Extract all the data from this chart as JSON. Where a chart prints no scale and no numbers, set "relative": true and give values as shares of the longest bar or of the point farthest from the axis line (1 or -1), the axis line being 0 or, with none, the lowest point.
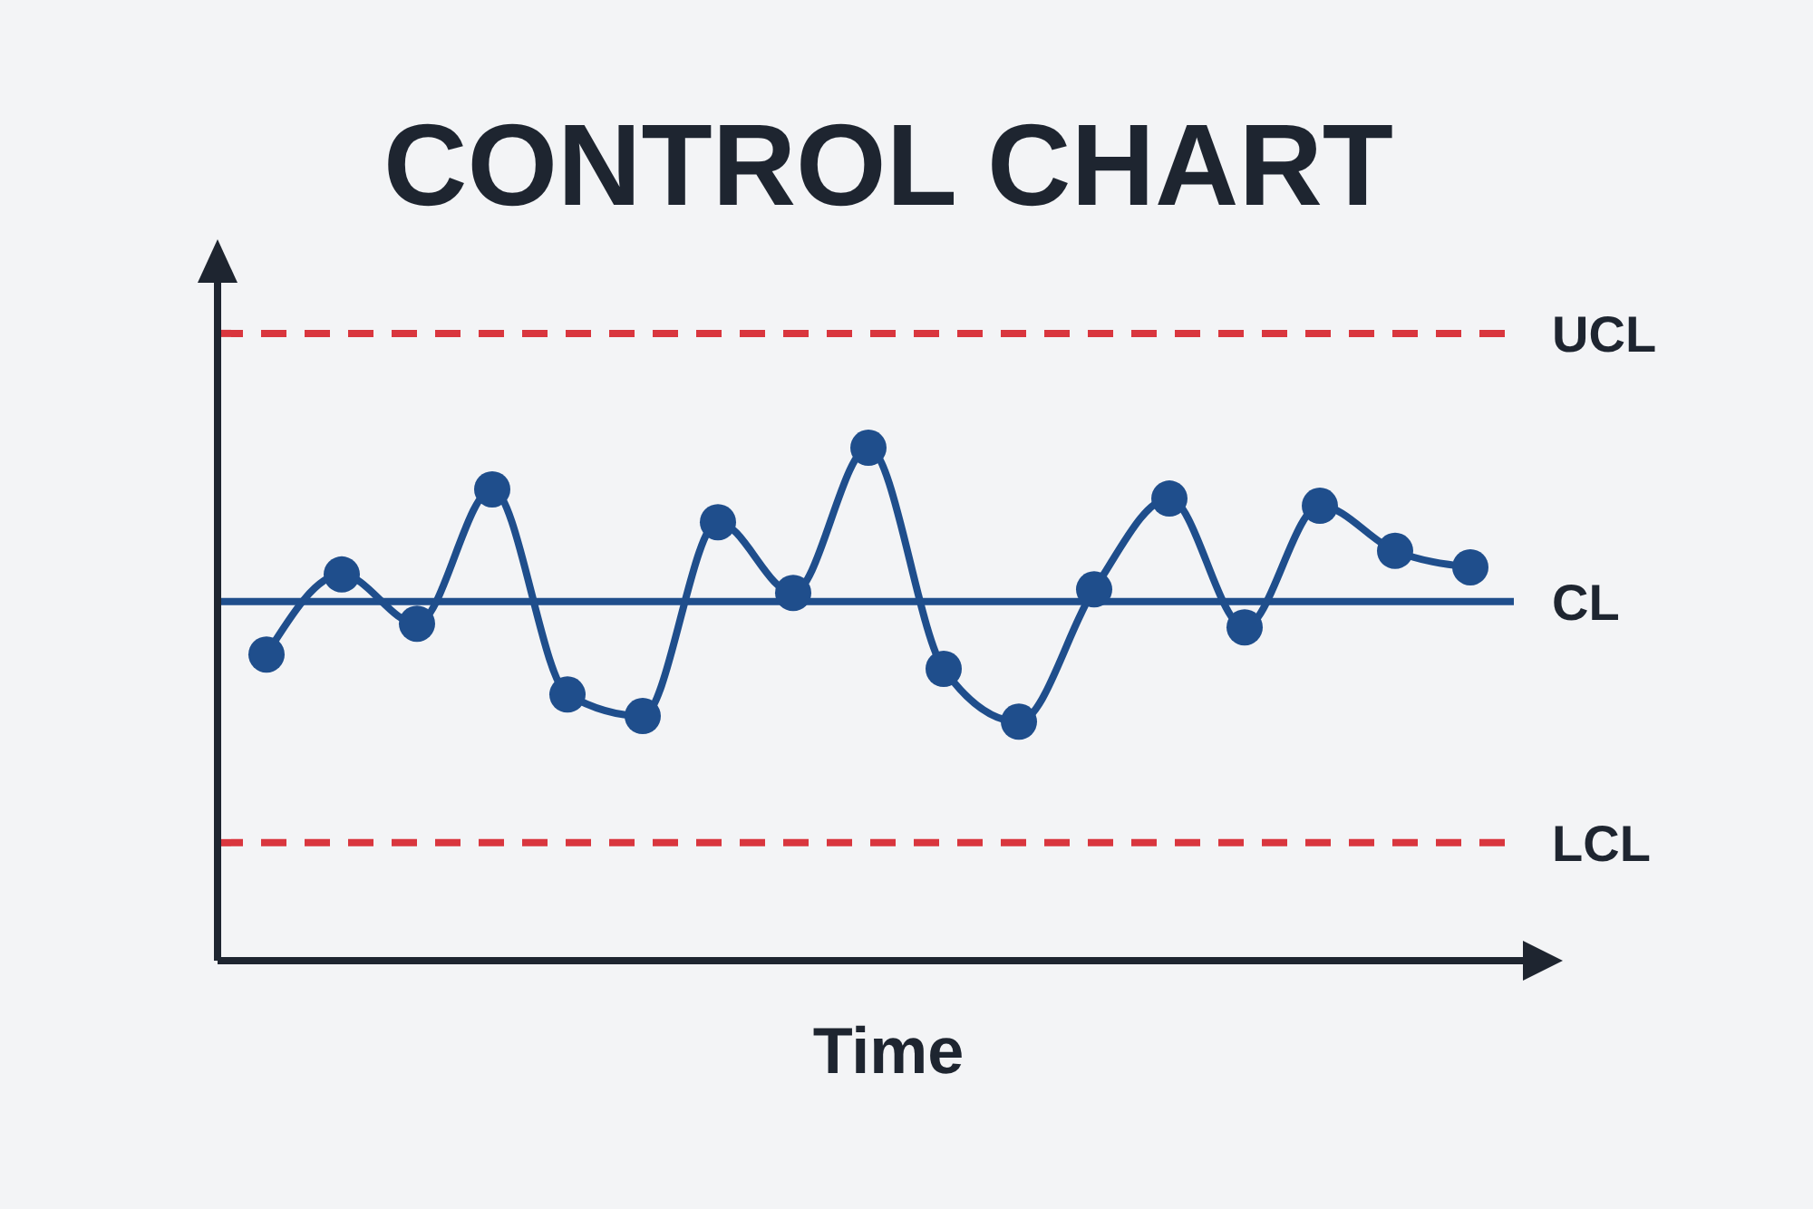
{
  "chart_data": {
    "type": "line",
    "title": "CONTROL CHART",
    "xlabel": "Time",
    "relative": true,
    "marker": "circle",
    "grid": false,
    "categories": [
      null,
      null,
      null,
      null,
      null,
      null,
      null,
      null,
      null,
      null,
      null,
      null,
      null,
      null,
      null,
      null,
      null
    ],
    "series": [
      {
        "color": "#1f4e8c",
        "values": [
          0.597,
          0.753,
          0.657,
          0.919,
          0.519,
          0.477,
          0.855,
          0.717,
          1,
          0.569,
          0.466,
          0.724,
          0.901,
          0.65,
          0.887,
          0.799,
          0.767
        ]
      }
    ],
    "ref_lines": [
      {
        "axis": "y",
        "value": 1.223,
        "label": "UCL",
        "color": "#d9363e",
        "line_style": "dashed"
      },
      {
        "axis": "y",
        "value": 0.7,
        "label": "CL",
        "color": "#1f4e8c",
        "line_style": "solid"
      },
      {
        "axis": "y",
        "value": 0.23,
        "label": "LCL",
        "color": "#d9363e",
        "line_style": "dashed"
      }
    ]
  }
}
